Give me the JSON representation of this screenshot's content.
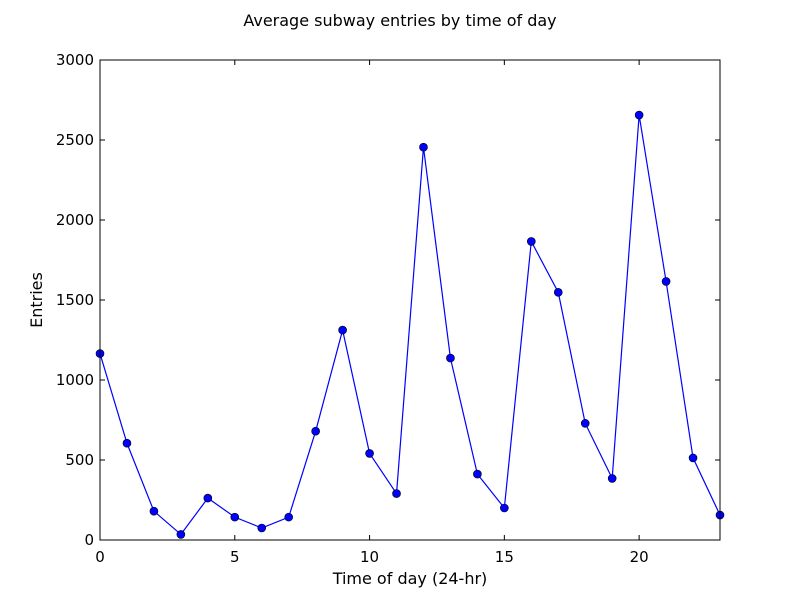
{
  "chart_data": {
    "type": "line",
    "title": "Average subway entries by time of day",
    "xlabel": "Time of day (24-hr)",
    "ylabel": "Entries",
    "xlim": [
      0,
      23
    ],
    "ylim": [
      0,
      3000
    ],
    "xticks": [
      0,
      5,
      10,
      15,
      20
    ],
    "yticks": [
      0,
      500,
      1000,
      1500,
      2000,
      2500,
      3000
    ],
    "grid": false,
    "legend": "none",
    "series": [
      {
        "color": "#0000ff",
        "marker": "circle",
        "x": [
          0,
          1,
          2,
          3,
          4,
          5,
          6,
          7,
          8,
          9,
          10,
          11,
          12,
          13,
          14,
          15,
          16,
          17,
          18,
          19,
          20,
          21,
          22,
          23
        ],
        "y": [
          1165,
          605,
          180,
          35,
          262,
          143,
          75,
          143,
          680,
          1312,
          541,
          290,
          2455,
          1137,
          412,
          200,
          1866,
          1548,
          729,
          385,
          2656,
          1616,
          513,
          156
        ]
      }
    ]
  }
}
